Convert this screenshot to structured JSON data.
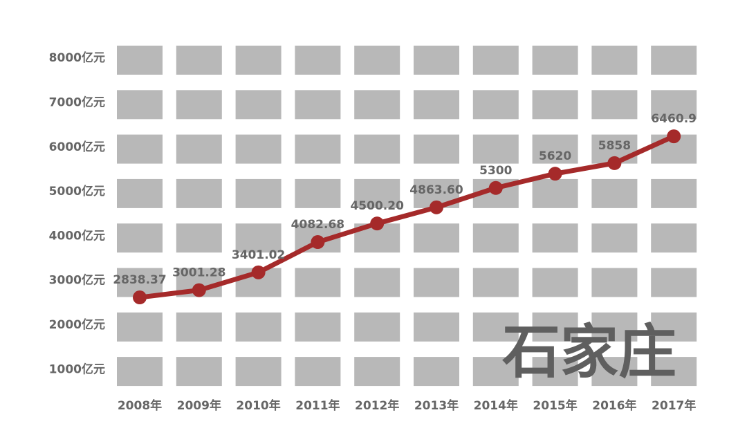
{
  "chart_data": {
    "type": "line",
    "title": "",
    "xlabel": "",
    "ylabel": "",
    "categories": [
      "2008年",
      "2009年",
      "2010年",
      "2011年",
      "2012年",
      "2013年",
      "2014年",
      "2015年",
      "2016年",
      "2017年"
    ],
    "series": [
      {
        "values": [
          2838.37,
          3001.28,
          3401.02,
          4082.68,
          4500.2,
          4863.6,
          5300,
          5620,
          5858,
          6460.9
        ]
      }
    ],
    "data_labels": [
      "2838.37",
      "3001.28",
      "3401.02",
      "4082.68",
      "4500.20",
      "4863.60",
      "5300",
      "5620",
      "5858",
      "6460.9"
    ],
    "y_ticks": [
      {
        "value": 8000,
        "label": "8000亿元"
      },
      {
        "value": 7000,
        "label": "7000亿元"
      },
      {
        "value": 6000,
        "label": "6000亿元"
      },
      {
        "value": 5000,
        "label": "5000亿元"
      },
      {
        "value": 4000,
        "label": "4000亿元"
      },
      {
        "value": 3000,
        "label": "3000亿元"
      },
      {
        "value": 2000,
        "label": "2000亿元"
      },
      {
        "value": 1000,
        "label": "1000亿元"
      }
    ],
    "ylim": [
      500,
      8500
    ],
    "grid": true,
    "legend": "none",
    "watermark": "石家庄",
    "colors": {
      "line": "#a52a2a",
      "marker": "#a52a2a",
      "grid_cell": "#b8b8b8",
      "text": "#666666",
      "watermark": "#5f5f5f"
    }
  }
}
